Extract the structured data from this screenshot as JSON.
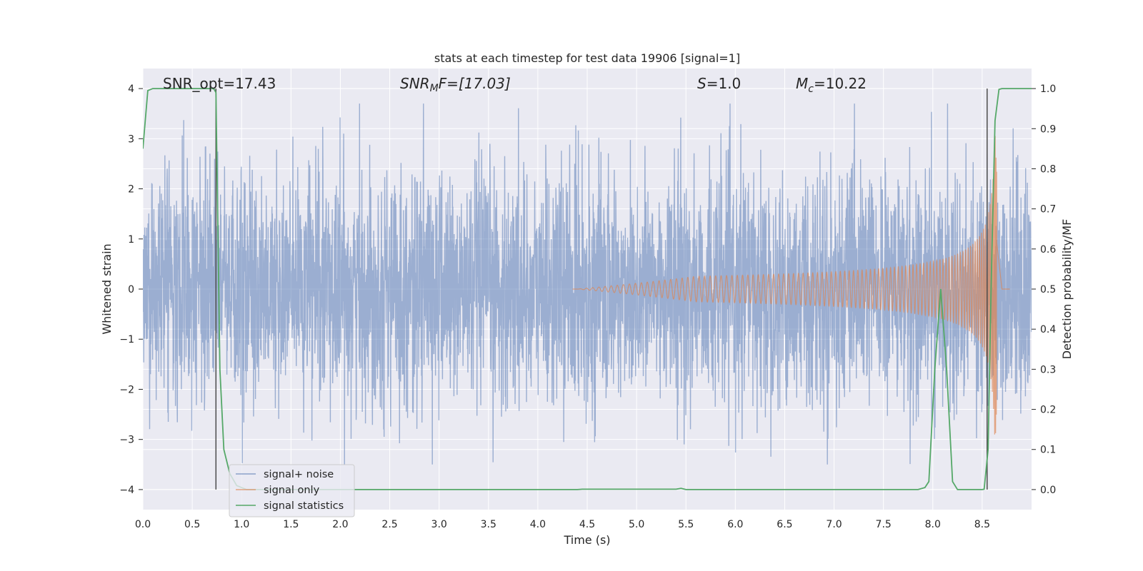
{
  "chart_data": {
    "type": "line",
    "title": "stats at each timestep for test data 19906 [signal=1]",
    "xlabel": "Time (s)",
    "ylabel": "Whitened strain",
    "ylabel_right": "Detection probability/MF",
    "xlim": [
      0.0,
      9.0
    ],
    "ylim": [
      -4.4,
      4.4
    ],
    "ylim_right": [
      -0.05,
      1.05
    ],
    "x_ticks": [
      "0.0",
      "0.5",
      "1.0",
      "1.5",
      "2.0",
      "2.5",
      "3.0",
      "3.5",
      "4.0",
      "4.5",
      "5.0",
      "5.5",
      "6.0",
      "6.5",
      "7.0",
      "7.5",
      "8.0",
      "8.5"
    ],
    "y_ticks": [
      "4",
      "3",
      "2",
      "1",
      "0",
      "−1",
      "−2",
      "−3",
      "−4"
    ],
    "y_ticks_right": [
      "1.0",
      "0.9",
      "0.8",
      "0.7",
      "0.6",
      "0.5",
      "0.4",
      "0.3",
      "0.2",
      "0.1",
      "0.0"
    ],
    "grid": true,
    "legend_position": "lower-left",
    "annotations": {
      "snr_opt": "SNR_opt=17.43",
      "snr_mf_sym": "SNR",
      "snr_mf_sub": "M",
      "snr_mf_rest": "F=[17.03]",
      "s_sym": "S",
      "s_rest": "=1.0",
      "mc_sym": "M",
      "mc_sub": "c",
      "mc_rest": "=10.22"
    },
    "vertical_lines_x": [
      0.74,
      8.55
    ],
    "series": [
      {
        "name": "signal+ noise",
        "color": "#4c72b0",
        "axis": "left",
        "description_values": "dense whitened noise spanning roughly -3.5 to 3.7 across 0-9 s"
      },
      {
        "name": "signal only",
        "color": "#dd8452",
        "axis": "left",
        "chirp": {
          "start": 4.4,
          "peak": 8.63,
          "peak_amplitude": 3.15
        }
      },
      {
        "name": "signal statistics",
        "color": "#55a868",
        "axis": "right",
        "x": [
          0.0,
          0.05,
          0.1,
          0.7,
          0.72,
          0.74,
          0.78,
          0.82,
          0.88,
          0.95,
          1.05,
          4.4,
          4.45,
          5.4,
          5.45,
          5.5,
          7.85,
          7.92,
          7.96,
          8.02,
          8.08,
          8.14,
          8.2,
          8.25,
          8.5,
          8.52,
          8.56,
          8.59,
          8.63,
          8.67,
          8.7,
          9.0
        ],
        "y": [
          0.85,
          0.995,
          1.0,
          1.0,
          0.999,
          0.99,
          0.3,
          0.1,
          0.04,
          0.01,
          0.0,
          0.0,
          0.001,
          0.001,
          0.003,
          0.0,
          0.0,
          0.005,
          0.02,
          0.3,
          0.5,
          0.3,
          0.02,
          0.0,
          0.0,
          0.001,
          0.1,
          0.5,
          0.92,
          0.998,
          1.0,
          1.0
        ]
      }
    ]
  }
}
